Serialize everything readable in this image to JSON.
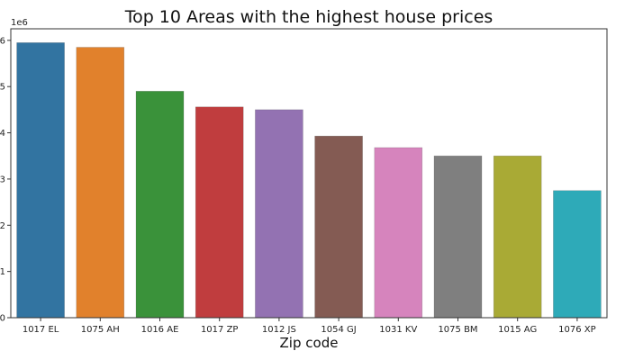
{
  "chart_data": {
    "type": "bar",
    "title": "Top 10 Areas with the highest house prices",
    "xlabel": "Zip code",
    "ylabel": "",
    "y_exponent_label": "1e6",
    "categories": [
      "1017 EL",
      "1075 AH",
      "1016 AE",
      "1017 ZP",
      "1012 JS",
      "1054 GJ",
      "1031 KV",
      "1075 BM",
      "1015 AG",
      "1076 XP"
    ],
    "values": [
      5950000,
      5850000,
      4900000,
      4560000,
      4500000,
      3930000,
      3680000,
      3500000,
      3500000,
      2750000
    ],
    "colors": [
      "#3274a1",
      "#e1812c",
      "#3a923a",
      "#c03d3e",
      "#9372b2",
      "#845b53",
      "#d684bd",
      "#7f7f7f",
      "#a9aa35",
      "#2eaab8"
    ],
    "ylim": [
      0,
      6250000
    ],
    "yticks": [
      0,
      1000000,
      2000000,
      3000000,
      4000000,
      5000000,
      6000000
    ],
    "ytick_labels": [
      "0",
      "1",
      "2",
      "3",
      "4",
      "5",
      "6"
    ],
    "grid": false,
    "legend": "none"
  }
}
